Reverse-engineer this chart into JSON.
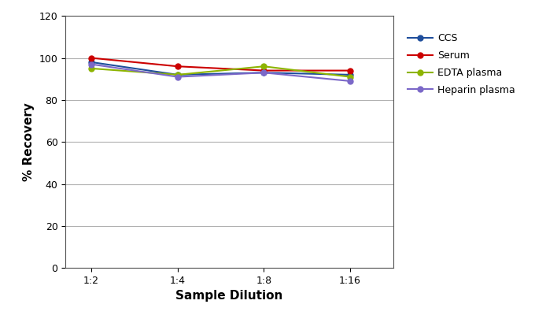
{
  "x_labels": [
    "1:2",
    "1:4",
    "1:8",
    "1:16"
  ],
  "x_positions": [
    0,
    1,
    2,
    3
  ],
  "series_order": [
    "CCS",
    "Serum",
    "EDTA plasma",
    "Heparin plasma"
  ],
  "series": {
    "CCS": {
      "values": [
        98,
        92,
        93,
        92
      ],
      "color": "#1f4e9c",
      "marker": "o",
      "markersize": 5
    },
    "Serum": {
      "values": [
        100,
        96,
        94,
        94
      ],
      "color": "#cc0000",
      "marker": "o",
      "markersize": 5
    },
    "EDTA plasma": {
      "values": [
        95,
        92,
        96,
        91
      ],
      "color": "#8db400",
      "marker": "o",
      "markersize": 5
    },
    "Heparin plasma": {
      "values": [
        97,
        91,
        93,
        89
      ],
      "color": "#7b68c8",
      "marker": "o",
      "markersize": 5
    }
  },
  "ylabel": "% Recovery",
  "xlabel": "Sample Dilution",
  "ylim": [
    0,
    120
  ],
  "yticks": [
    0,
    20,
    40,
    60,
    80,
    100,
    120
  ],
  "background_color": "#ffffff",
  "plot_background": "#ffffff",
  "grid_color": "#b0b0b0",
  "linewidth": 1.5,
  "legend_fontsize": 9,
  "axis_label_fontsize": 11,
  "tick_fontsize": 9,
  "figsize": [
    6.94,
    4.05
  ],
  "dpi": 100
}
